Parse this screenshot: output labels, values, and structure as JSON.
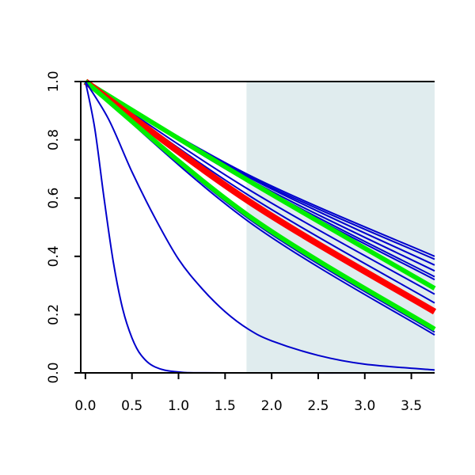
{
  "chart_data": {
    "type": "line",
    "title": "",
    "xlabel": "",
    "ylabel": "",
    "xlim": [
      -0.05,
      3.75
    ],
    "ylim": [
      0.0,
      1.0
    ],
    "x_ticks": [
      0.0,
      0.5,
      1.0,
      1.5,
      2.0,
      2.5,
      3.0,
      3.5
    ],
    "x_tick_labels": [
      "0.0",
      "0.5",
      "1.0",
      "1.5",
      "2.0",
      "2.5",
      "3.0",
      "3.5"
    ],
    "y_ticks": [
      0.0,
      0.2,
      0.4,
      0.6,
      0.8,
      1.0
    ],
    "y_tick_labels": [
      "0.0",
      "0.2",
      "0.4",
      "0.6",
      "0.8",
      "1.0"
    ],
    "shaded_region": {
      "x_start": 1.73,
      "x_end": 3.75,
      "color": "#e0ecee"
    },
    "grid": false,
    "legend": "none",
    "series": [
      {
        "color": "#0000cc",
        "width": 2,
        "points": [
          [
            0,
            1.0
          ],
          [
            1.75,
            0.68
          ],
          [
            3.75,
            0.4
          ]
        ]
      },
      {
        "color": "#0000cc",
        "width": 2,
        "points": [
          [
            0,
            1.0
          ],
          [
            1.75,
            0.675
          ],
          [
            3.75,
            0.39
          ]
        ]
      },
      {
        "color": "#0000cc",
        "width": 2,
        "points": [
          [
            0,
            1.0
          ],
          [
            1.75,
            0.672
          ],
          [
            3.75,
            0.37
          ]
        ]
      },
      {
        "color": "#0000cc",
        "width": 2,
        "points": [
          [
            0,
            1.0
          ],
          [
            1.75,
            0.665
          ],
          [
            3.75,
            0.35
          ]
        ]
      },
      {
        "color": "#0000cc",
        "width": 2,
        "points": [
          [
            0,
            1.0
          ],
          [
            1.75,
            0.66
          ],
          [
            3.75,
            0.33
          ]
        ]
      },
      {
        "color": "#0000cc",
        "width": 2,
        "points": [
          [
            0,
            1.0
          ],
          [
            1.75,
            0.655
          ],
          [
            3.75,
            0.32
          ]
        ]
      },
      {
        "color": "#0000cc",
        "width": 2,
        "points": [
          [
            0,
            1.0
          ],
          [
            1.75,
            0.63
          ],
          [
            3.75,
            0.27
          ]
        ]
      },
      {
        "color": "#0000cc",
        "width": 2,
        "points": [
          [
            0,
            1.0
          ],
          [
            1.75,
            0.61
          ],
          [
            3.75,
            0.24
          ]
        ]
      },
      {
        "color": "#0000cc",
        "width": 2,
        "points": [
          [
            0,
            1.0
          ],
          [
            1.75,
            0.53
          ],
          [
            3.75,
            0.14
          ]
        ]
      },
      {
        "color": "#0000cc",
        "width": 2,
        "points": [
          [
            0,
            1.0
          ],
          [
            1.75,
            0.52
          ],
          [
            3.75,
            0.13
          ]
        ]
      },
      {
        "color": "#00ee00",
        "width": 6,
        "points": [
          [
            0,
            1.0
          ],
          [
            1.75,
            0.66
          ],
          [
            3.75,
            0.29
          ]
        ]
      },
      {
        "color": "#ff0000",
        "width": 8,
        "points": [
          [
            0,
            1.0
          ],
          [
            1.75,
            0.59
          ],
          [
            3.75,
            0.21
          ]
        ]
      },
      {
        "color": "#00ee00",
        "width": 6,
        "points": [
          [
            0,
            1.0
          ],
          [
            1.75,
            0.54
          ],
          [
            3.75,
            0.15
          ]
        ]
      },
      {
        "color": "#0000cc",
        "width": 2,
        "points": [
          [
            0,
            1.0
          ],
          [
            0.25,
            0.87
          ],
          [
            0.5,
            0.69
          ],
          [
            0.75,
            0.53
          ],
          [
            1.0,
            0.39
          ],
          [
            1.25,
            0.29
          ],
          [
            1.5,
            0.21
          ],
          [
            1.75,
            0.15
          ],
          [
            2.0,
            0.11
          ],
          [
            2.5,
            0.06
          ],
          [
            3.0,
            0.03
          ],
          [
            3.75,
            0.01
          ]
        ]
      },
      {
        "color": "#0000cc",
        "width": 2,
        "points": [
          [
            0,
            1.0
          ],
          [
            0.1,
            0.84
          ],
          [
            0.2,
            0.6
          ],
          [
            0.3,
            0.38
          ],
          [
            0.4,
            0.22
          ],
          [
            0.5,
            0.12
          ],
          [
            0.6,
            0.06
          ],
          [
            0.75,
            0.02
          ],
          [
            1.0,
            0.003
          ],
          [
            1.5,
            0.0
          ],
          [
            3.75,
            0.0
          ]
        ]
      }
    ]
  }
}
